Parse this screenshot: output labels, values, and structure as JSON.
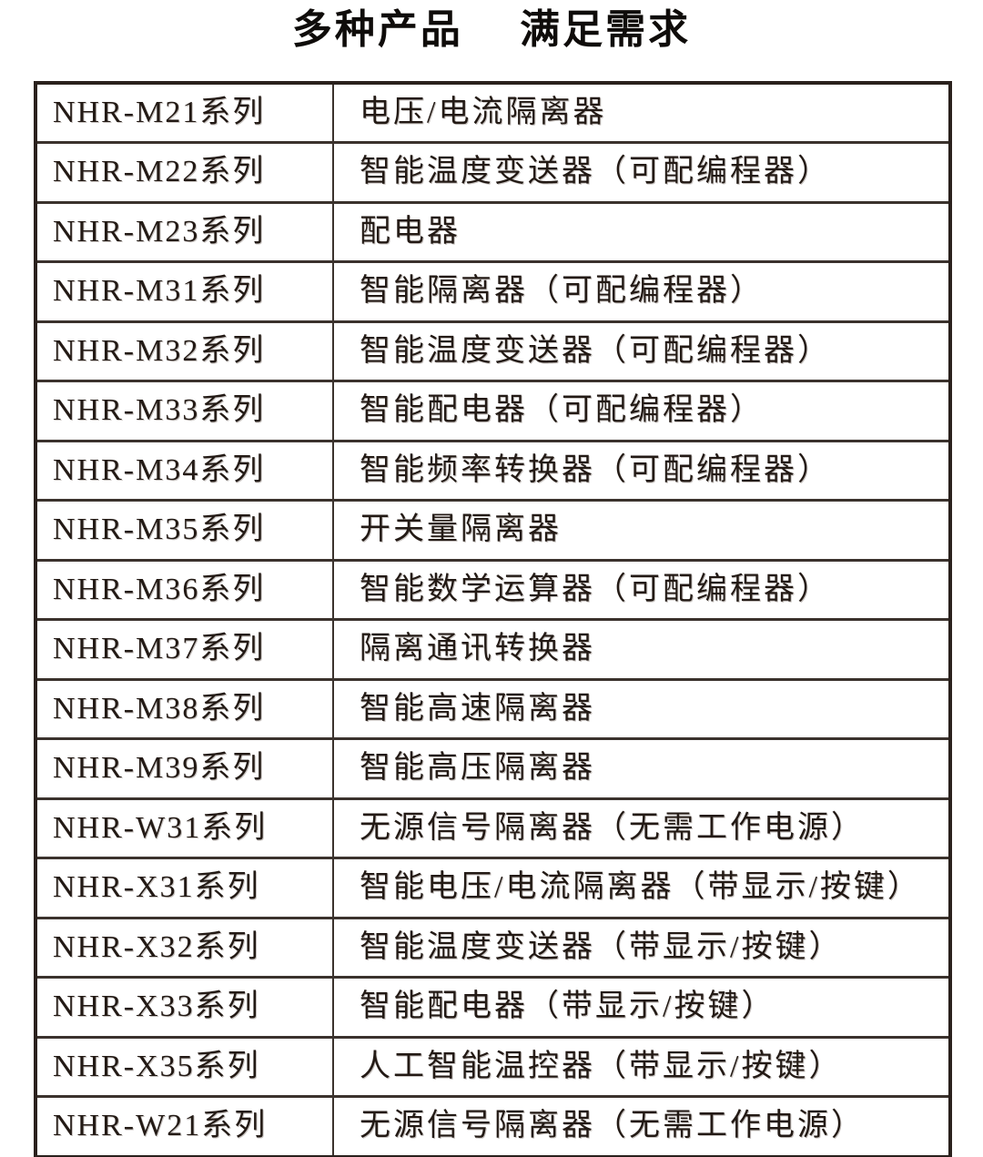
{
  "title": "多种产品　 满足需求",
  "colors": {
    "text": "#231a15",
    "border": "#2a211d",
    "background": "#ffffff"
  },
  "table": {
    "columns": [
      "series",
      "description"
    ],
    "rows": [
      {
        "series": "NHR-M21系列",
        "description": "电压/电流隔离器"
      },
      {
        "series": "NHR-M22系列",
        "description": "智能温度变送器（可配编程器）"
      },
      {
        "series": "NHR-M23系列",
        "description": "配电器"
      },
      {
        "series": "NHR-M31系列",
        "description": "智能隔离器（可配编程器）"
      },
      {
        "series": "NHR-M32系列",
        "description": "智能温度变送器（可配编程器）"
      },
      {
        "series": "NHR-M33系列",
        "description": "智能配电器（可配编程器）"
      },
      {
        "series": "NHR-M34系列",
        "description": "智能频率转换器（可配编程器）"
      },
      {
        "series": "NHR-M35系列",
        "description": "开关量隔离器"
      },
      {
        "series": "NHR-M36系列",
        "description": "智能数学运算器（可配编程器）"
      },
      {
        "series": "NHR-M37系列",
        "description": "隔离通讯转换器"
      },
      {
        "series": "NHR-M38系列",
        "description": "智能高速隔离器"
      },
      {
        "series": "NHR-M39系列",
        "description": "智能高压隔离器"
      },
      {
        "series": "NHR-W31系列",
        "description": "无源信号隔离器（无需工作电源）"
      },
      {
        "series": "NHR-X31系列",
        "description": "智能电压/电流隔离器（带显示/按键）"
      },
      {
        "series": "NHR-X32系列",
        "description": "智能温度变送器（带显示/按键）"
      },
      {
        "series": "NHR-X33系列",
        "description": "智能配电器（带显示/按键）"
      },
      {
        "series": "NHR-X35系列",
        "description": "人工智能温控器（带显示/按键）"
      },
      {
        "series": "NHR-W21系列",
        "description": "无源信号隔离器（无需工作电源）"
      }
    ]
  }
}
